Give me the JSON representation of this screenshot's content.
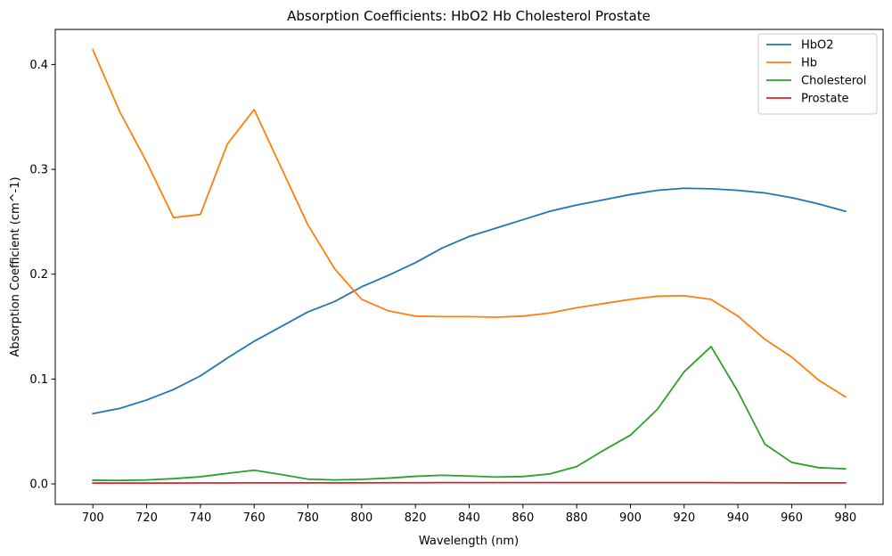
{
  "chart_data": {
    "type": "line",
    "title": "Absorption Coefficients: HbO2 Hb Cholesterol Prostate",
    "xlabel": "Wavelength (nm)",
    "ylabel": "Absorption Coefficient (cm^-1)",
    "xlim": [
      686,
      994
    ],
    "ylim": [
      -0.0195,
      0.4335
    ],
    "xticks": [
      700,
      720,
      740,
      760,
      780,
      800,
      820,
      840,
      860,
      880,
      900,
      920,
      940,
      960,
      980
    ],
    "yticks": [
      0.0,
      0.1,
      0.2,
      0.3,
      0.4
    ],
    "ytick_labels": [
      "0.0",
      "0.1",
      "0.2",
      "0.3",
      "0.4"
    ],
    "grid": false,
    "legend_position": "top-right",
    "x": [
      700,
      710,
      720,
      730,
      740,
      750,
      760,
      770,
      780,
      790,
      800,
      810,
      820,
      830,
      840,
      850,
      860,
      870,
      880,
      890,
      900,
      910,
      920,
      930,
      940,
      950,
      960,
      970,
      980
    ],
    "series": [
      {
        "name": "HbO2",
        "color": "#1f77b4",
        "values": [
          0.067,
          0.072,
          0.08,
          0.09,
          0.103,
          0.12,
          0.136,
          0.15,
          0.164,
          0.174,
          0.188,
          0.199,
          0.211,
          0.225,
          0.236,
          0.244,
          0.252,
          0.26,
          0.266,
          0.271,
          0.276,
          0.28,
          0.282,
          0.2815,
          0.28,
          0.2775,
          0.273,
          0.267,
          0.26
        ]
      },
      {
        "name": "Hb",
        "color": "#ff7f0e",
        "values": [
          0.414,
          0.355,
          0.307,
          0.254,
          0.257,
          0.324,
          0.357,
          0.302,
          0.247,
          0.205,
          0.176,
          0.165,
          0.16,
          0.1595,
          0.1595,
          0.159,
          0.16,
          0.163,
          0.168,
          0.172,
          0.176,
          0.179,
          0.1795,
          0.176,
          0.16,
          0.138,
          0.121,
          0.099,
          0.083
        ]
      },
      {
        "name": "Cholesterol",
        "color": "#2ca02c",
        "values": [
          0.0035,
          0.0033,
          0.0038,
          0.005,
          0.0068,
          0.01,
          0.013,
          0.009,
          0.0045,
          0.0038,
          0.0043,
          0.0055,
          0.0072,
          0.0082,
          0.0075,
          0.0065,
          0.007,
          0.0095,
          0.0165,
          0.032,
          0.0465,
          0.071,
          0.107,
          0.131,
          0.088,
          0.038,
          0.0205,
          0.0155,
          0.0143
        ]
      },
      {
        "name": "Prostate",
        "color": "#d62728",
        "values": [
          0.0008,
          0.0008,
          0.0008,
          0.0008,
          0.0009,
          0.0009,
          0.001,
          0.001,
          0.001,
          0.001,
          0.001,
          0.0011,
          0.0011,
          0.0012,
          0.0012,
          0.0012,
          0.0012,
          0.0012,
          0.0012,
          0.0012,
          0.0012,
          0.0012,
          0.0012,
          0.0012,
          0.0011,
          0.0011,
          0.001,
          0.001,
          0.001
        ]
      }
    ]
  }
}
